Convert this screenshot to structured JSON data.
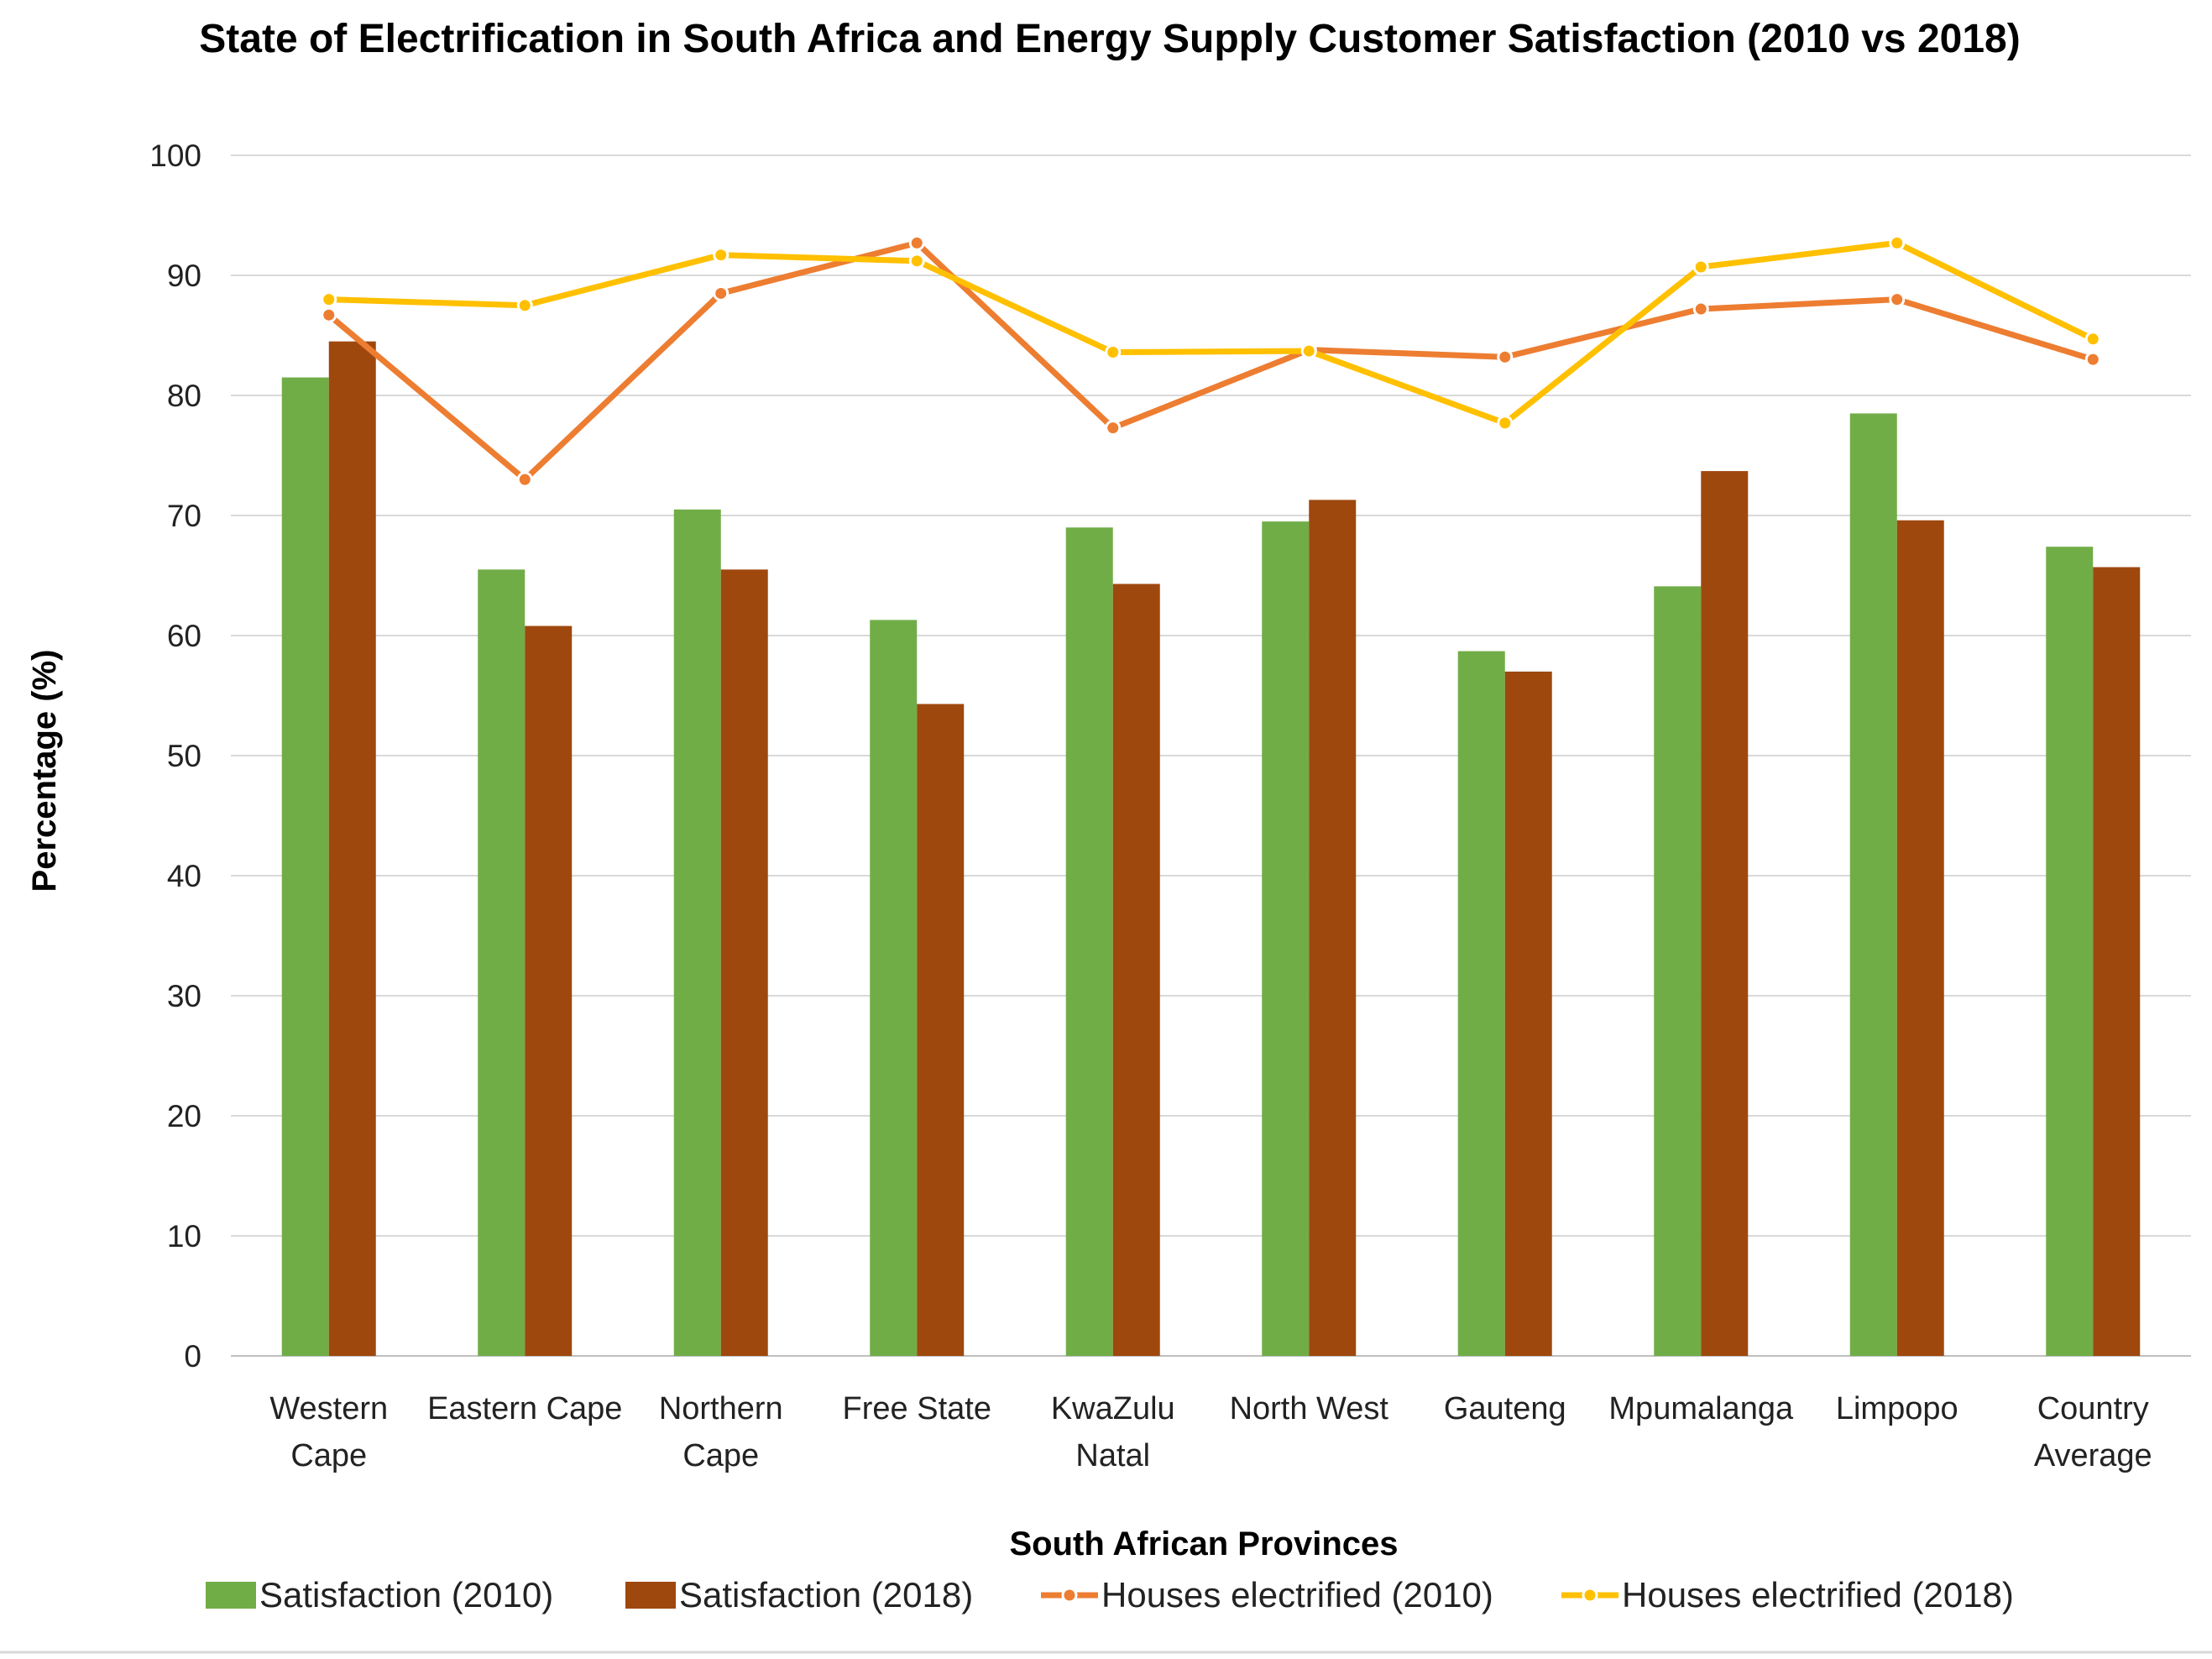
{
  "chart_data": {
    "type": "bar",
    "title": "State of Electrification in South Africa and Energy Supply Customer Satisfaction (2010 vs 2018)",
    "xlabel": "South African Provinces",
    "ylabel": "Percentage (%)",
    "ylim": [
      0,
      100
    ],
    "yticks": [
      0,
      10,
      20,
      30,
      40,
      50,
      60,
      70,
      80,
      90,
      100
    ],
    "grid": true,
    "legend_position": "bottom",
    "categories": [
      [
        "Western",
        "Cape"
      ],
      [
        "Eastern Cape"
      ],
      [
        "Northern",
        "Cape"
      ],
      [
        "Free State"
      ],
      [
        "KwaZulu",
        "Natal"
      ],
      [
        "North West"
      ],
      [
        "Gauteng"
      ],
      [
        "Mpumalanga"
      ],
      [
        "Limpopo"
      ],
      [
        "Country",
        "Average"
      ]
    ],
    "series": [
      {
        "name": "Satisfaction (2010)",
        "kind": "bar",
        "color": "#70AD47",
        "values": [
          81.5,
          65.5,
          70.5,
          61.3,
          69.0,
          69.5,
          58.7,
          64.1,
          78.5,
          67.4
        ]
      },
      {
        "name": "Satisfaction (2018)",
        "kind": "bar",
        "color": "#9E480E",
        "values": [
          84.5,
          60.8,
          65.5,
          54.3,
          64.3,
          71.3,
          57.0,
          73.7,
          69.6,
          65.7
        ]
      },
      {
        "name": "Houses electrified (2010)",
        "kind": "line",
        "color": "#ED7D31",
        "values": [
          86.7,
          73.0,
          88.5,
          92.7,
          77.3,
          83.8,
          83.2,
          87.2,
          88.0,
          83.0
        ]
      },
      {
        "name": "Houses electrified (2018)",
        "kind": "line",
        "color": "#FFC000",
        "values": [
          88.0,
          87.5,
          91.7,
          91.2,
          83.6,
          83.7,
          77.7,
          90.7,
          92.7,
          84.7
        ]
      }
    ]
  }
}
